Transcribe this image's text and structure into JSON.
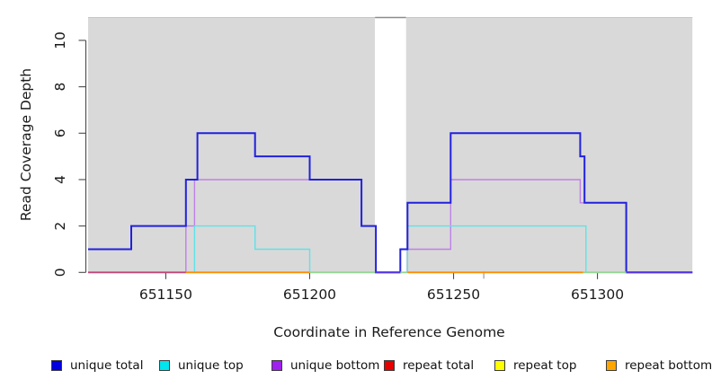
{
  "chart_data": {
    "type": "line",
    "subtype": "step-coverage-plot",
    "title": "",
    "xlabel": "Coordinate in Reference Genome",
    "ylabel": "Read Coverage Depth",
    "xlim": [
      651123,
      651334.5
    ],
    "ylim": [
      0,
      11
    ],
    "xticks": [
      651150,
      651200,
      651250,
      651300
    ],
    "minor_marks": [
      651260.5
    ],
    "yticks": [
      0,
      2,
      4,
      6,
      8,
      10
    ],
    "grid": "off",
    "legend_position": "bottom",
    "background_regions": [
      {
        "name": "covered-region-1",
        "x0": 651123,
        "x1": 651222.7,
        "color": "#d9d9d9",
        "top_border": "#c6c6c6"
      },
      {
        "name": "gap-region",
        "x0": 651222.7,
        "x1": 651233.5,
        "color": "#ffffff",
        "top_border": "#8c8c8c"
      },
      {
        "name": "covered-region-2",
        "x0": 651233.5,
        "x1": 651333,
        "color": "#d9d9d9",
        "top_border": "#c6c6c6"
      }
    ],
    "series": [
      {
        "name": "unique bottom",
        "color": "#bf80e6",
        "width": 1.4,
        "steps": [
          [
            651123,
            0
          ],
          [
            651157,
            2
          ],
          [
            651160,
            4
          ],
          [
            651218,
            2
          ],
          [
            651223,
            0
          ],
          [
            651234,
            1
          ],
          [
            651249,
            4
          ],
          [
            651294,
            3
          ],
          [
            651310,
            0
          ]
        ],
        "end": 651333
      },
      {
        "name": "unique top",
        "color": "#5fe2e8",
        "width": 1.4,
        "steps": [
          [
            651123,
            0
          ],
          [
            651160,
            2
          ],
          [
            651181,
            1
          ],
          [
            651200,
            0
          ],
          [
            651234,
            2
          ],
          [
            651296,
            0
          ]
        ],
        "end": 651333
      },
      {
        "name": "unique total",
        "color": "#2121dd",
        "width": 2,
        "steps": [
          [
            651123,
            1
          ],
          [
            651138,
            2
          ],
          [
            651157,
            4
          ],
          [
            651161,
            6
          ],
          [
            651181,
            5
          ],
          [
            651200,
            4
          ],
          [
            651218,
            2
          ],
          [
            651223,
            0
          ],
          [
            651231.5,
            1
          ],
          [
            651234,
            3
          ],
          [
            651249,
            6
          ],
          [
            651294,
            5
          ],
          [
            651295.5,
            3
          ],
          [
            651310,
            0
          ]
        ],
        "end": 651333
      }
    ],
    "baseline_segments": [
      {
        "x0": 651123,
        "x1": 651157,
        "color": "#c2457a"
      },
      {
        "x0": 651157,
        "x1": 651200,
        "color": "#ff8c00"
      },
      {
        "x0": 651200,
        "x1": 651222.7,
        "color": "#93d693"
      },
      {
        "x0": 651222.7,
        "x1": 651231.5,
        "color": "#5433e6"
      },
      {
        "x0": 651231.5,
        "x1": 651234,
        "color": "#93d693"
      },
      {
        "x0": 651234,
        "x1": 651295,
        "color": "#ff8c00"
      },
      {
        "x0": 651295,
        "x1": 651310,
        "color": "#93d693"
      },
      {
        "x0": 651310,
        "x1": 651333,
        "color": "#5433e6"
      }
    ],
    "legend": [
      {
        "label": "unique total",
        "color": "#0000e0"
      },
      {
        "label": "unique top",
        "color": "#00e6ef"
      },
      {
        "label": "unique bottom",
        "color": "#a020f0"
      },
      {
        "label": "repeat total",
        "color": "#e60000"
      },
      {
        "label": "repeat top",
        "color": "#ffff00"
      },
      {
        "label": "repeat bottom",
        "color": "#ffa500"
      }
    ]
  }
}
